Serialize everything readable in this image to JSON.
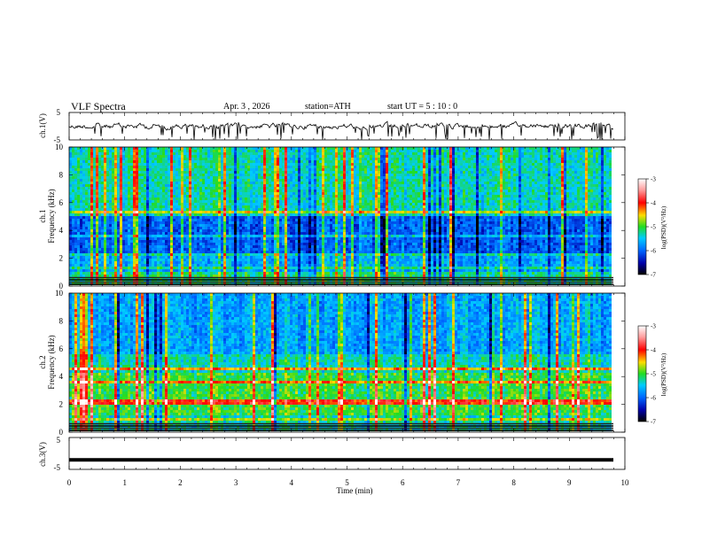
{
  "header": {
    "title": "VLF  Spectra",
    "date": "Apr. 3  , 2026",
    "station": "station=ATH",
    "start": "start  UT  =    5  : 10 : 0"
  },
  "chart_data": [
    {
      "type": "line",
      "name": "ch.1 waveform",
      "ylabel": "ch.1(V)",
      "ylim": [
        -5,
        5
      ],
      "yticks": [
        "5",
        "-5"
      ],
      "xlim": [
        0,
        10
      ],
      "description": "noisy voltage trace hovering near 0 V with intermittent negative spikes"
    },
    {
      "type": "heatmap",
      "name": "ch.1 spectrogram",
      "ylabel": "ch.1\nFrequency  (kHz)",
      "ylim": [
        0,
        10
      ],
      "yticks": [
        "0",
        "2",
        "4",
        "6",
        "8",
        "10"
      ],
      "xlim": [
        0,
        10
      ],
      "colorbar": {
        "label": "log(PSD)(V²/Hz)",
        "range": [
          -7,
          -3
        ],
        "ticks": [
          "-3",
          "-4",
          "-5",
          "-6",
          "-7"
        ]
      }
    },
    {
      "type": "heatmap",
      "name": "ch.2 spectrogram",
      "ylabel": "ch.2\nFrequency  (kHz)",
      "ylim": [
        0,
        10
      ],
      "yticks": [
        "0",
        "2",
        "4",
        "6",
        "8",
        "10"
      ],
      "xlim": [
        0,
        10
      ],
      "colorbar": {
        "label": "log(PSD)(V²/Hz)",
        "range": [
          -7,
          -3
        ],
        "ticks": [
          "-3",
          "-4",
          "-5",
          "-6",
          "-7"
        ]
      }
    },
    {
      "type": "line",
      "name": "ch.3 waveform",
      "ylabel": "ch.3(V)",
      "ylim": [
        -5,
        5
      ],
      "yticks": [
        "5",
        "-5"
      ],
      "xlim": [
        0,
        10
      ],
      "xlabel": "Time  (min)",
      "xticks": [
        "0",
        "1",
        "2",
        "3",
        "4",
        "5",
        "6",
        "7",
        "8",
        "9",
        "10"
      ],
      "description": "flat trace at about -2 V"
    }
  ]
}
